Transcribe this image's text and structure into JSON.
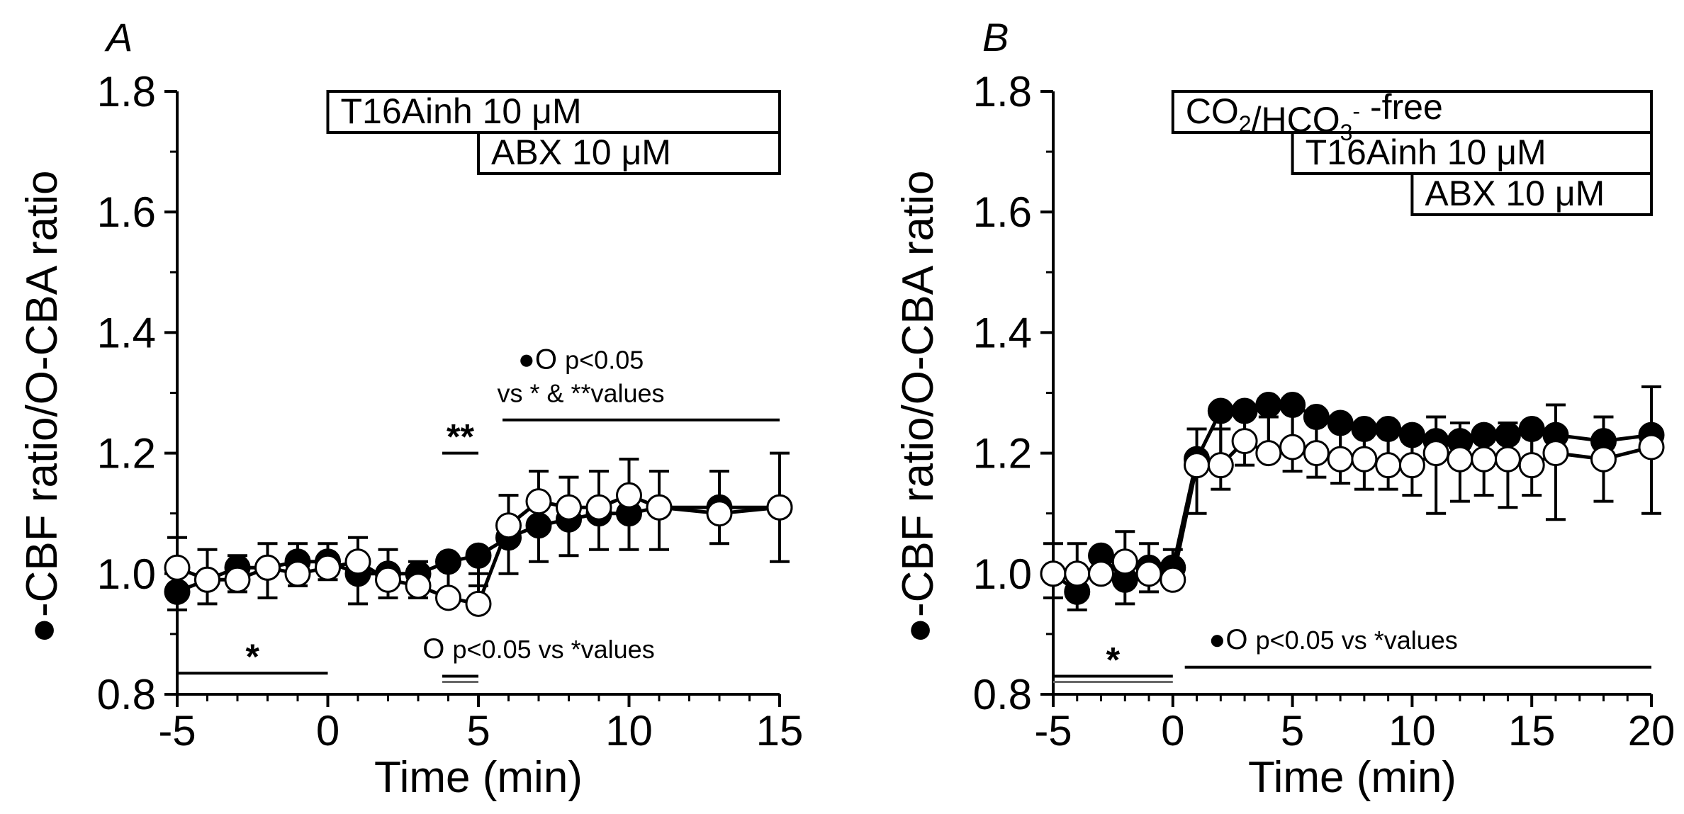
{
  "chart_data": [
    {
      "type": "line",
      "panel_label": "A",
      "xlabel": "Time (min)",
      "ylabel": "-CBF ratio/O-CBA ratio",
      "ylabel_marker": "●",
      "xlim": [
        -5,
        15
      ],
      "ylim": [
        0.8,
        1.8
      ],
      "xticks": [
        "-5",
        "0",
        "5",
        "10",
        "15"
      ],
      "yticks": [
        "0.8",
        "1.0",
        "1.2",
        "1.4",
        "1.6",
        "1.8"
      ],
      "treatment_boxes": [
        {
          "label": "T16Ainh 10 μM",
          "start": 0,
          "end": 15
        },
        {
          "label": "ABX 10 μM",
          "start": 5,
          "end": 15
        }
      ],
      "series": [
        {
          "name": "filled",
          "marker": "filled-circle",
          "x": [
            -5,
            -4,
            -3,
            -2,
            -1,
            0,
            1,
            2,
            3,
            4,
            5,
            6,
            7,
            8,
            9,
            10,
            11,
            13,
            15
          ],
          "values": [
            0.97,
            0.99,
            1.01,
            1.01,
            1.02,
            1.02,
            1.0,
            1.0,
            1.0,
            1.02,
            1.03,
            1.06,
            1.08,
            1.09,
            1.1,
            1.1,
            1.11,
            1.11,
            1.11
          ],
          "errors": [
            0.03,
            0.04,
            0.04,
            0.05,
            0.04,
            0.03,
            0.05,
            0.04,
            0.04,
            0.05,
            0.05,
            0.06,
            0.06,
            0.06,
            0.06,
            0.06,
            0.07,
            0.06,
            0.09
          ]
        },
        {
          "name": "open",
          "marker": "open-circle",
          "x": [
            -5,
            -4,
            -3,
            -2,
            -1,
            0,
            1,
            2,
            3,
            4,
            5,
            6,
            7,
            8,
            9,
            10,
            11,
            13,
            15
          ],
          "values": [
            1.01,
            0.99,
            0.99,
            1.01,
            1.0,
            1.01,
            1.02,
            0.99,
            0.98,
            0.96,
            0.95,
            1.08,
            1.12,
            1.11,
            1.11,
            1.13,
            1.11,
            1.1,
            1.11
          ],
          "errors": [
            0.05,
            0.05,
            0.04,
            0.04,
            0.05,
            0.04,
            0.04,
            0.05,
            0.04,
            0.05,
            0.05,
            0.05,
            0.05,
            0.05,
            0.06,
            0.06,
            0.06,
            0.07,
            0.09
          ]
        }
      ],
      "significance": [
        {
          "marker": "*",
          "range": [
            -5,
            0
          ],
          "y": 0.835
        },
        {
          "marker": "**",
          "range": [
            3.8,
            5
          ],
          "y": 1.2
        },
        {
          "range": [
            3.8,
            5
          ],
          "y": 0.83,
          "style": "double"
        },
        {
          "range": [
            5.8,
            15
          ],
          "y": 1.255
        }
      ],
      "annotations": [
        {
          "symbols": "●O",
          "text": "p<0.05",
          "at": [
            8.4,
            1.34
          ]
        },
        {
          "text": "vs * & **values",
          "at": [
            8.4,
            1.285
          ]
        },
        {
          "symbols": "O",
          "text": "p<0.05 vs *values",
          "at": [
            7.0,
            0.86
          ]
        }
      ]
    },
    {
      "type": "line",
      "panel_label": "B",
      "xlabel": "Time (min)",
      "ylabel": "-CBF ratio/O-CBA ratio",
      "ylabel_marker": "●",
      "xlim": [
        -5,
        20
      ],
      "ylim": [
        0.8,
        1.8
      ],
      "xticks": [
        "-5",
        "0",
        "5",
        "10",
        "15",
        "20"
      ],
      "yticks": [
        "0.8",
        "1.0",
        "1.2",
        "1.4",
        "1.6",
        "1.8"
      ],
      "treatment_boxes": [
        {
          "label": "CO2/HCO3- -free",
          "start": 0,
          "end": 20
        },
        {
          "label": "T16Ainh 10 μM",
          "start": 5,
          "end": 20
        },
        {
          "label": "ABX 10 μM",
          "start": 10,
          "end": 20
        }
      ],
      "series": [
        {
          "name": "filled",
          "marker": "filled-circle",
          "x": [
            -5,
            -4,
            -3,
            -2,
            -1,
            0,
            1,
            2,
            3,
            4,
            5,
            6,
            7,
            8,
            9,
            10,
            11,
            12,
            13,
            14,
            15,
            16,
            18,
            20
          ],
          "values": [
            1.0,
            0.97,
            1.03,
            0.99,
            1.01,
            1.01,
            1.19,
            1.27,
            1.27,
            1.28,
            1.28,
            1.26,
            1.25,
            1.24,
            1.24,
            1.23,
            1.22,
            1.22,
            1.23,
            1.23,
            1.24,
            1.23,
            1.22,
            1.23
          ],
          "errors": [
            0.04,
            0.03,
            0.04,
            0.04,
            0.04,
            0.03,
            0.09,
            0.13,
            0.09,
            0.09,
            0.11,
            0.1,
            0.1,
            0.1,
            0.1,
            0.1,
            0.12,
            0.1,
            0.1,
            0.12,
            0.11,
            0.14,
            0.1,
            0.13
          ]
        },
        {
          "name": "open",
          "marker": "open-circle",
          "x": [
            -5,
            -4,
            -3,
            -2,
            -1,
            0,
            1,
            2,
            3,
            4,
            5,
            6,
            7,
            8,
            9,
            10,
            11,
            12,
            13,
            14,
            15,
            16,
            18,
            20
          ],
          "values": [
            1.0,
            1.0,
            1.0,
            1.02,
            1.0,
            0.99,
            1.18,
            1.18,
            1.22,
            1.2,
            1.21,
            1.2,
            1.19,
            1.19,
            1.18,
            1.18,
            1.2,
            1.19,
            1.19,
            1.19,
            1.18,
            1.2,
            1.19,
            1.21
          ],
          "errors": [
            0.05,
            0.05,
            0.04,
            0.05,
            0.05,
            0.05,
            0.06,
            0.06,
            0.06,
            0.06,
            0.06,
            0.06,
            0.06,
            0.05,
            0.06,
            0.06,
            0.06,
            0.06,
            0.05,
            0.06,
            0.06,
            0.08,
            0.07,
            0.1
          ]
        }
      ],
      "significance": [
        {
          "marker": "*",
          "range": [
            -5,
            0
          ],
          "y": 0.83,
          "style": "double"
        },
        {
          "range": [
            0.5,
            20
          ],
          "y": 0.845
        }
      ],
      "annotations": [
        {
          "symbols": "●O",
          "text": "p<0.05 vs *values",
          "at": [
            6.7,
            0.875
          ]
        }
      ]
    }
  ]
}
